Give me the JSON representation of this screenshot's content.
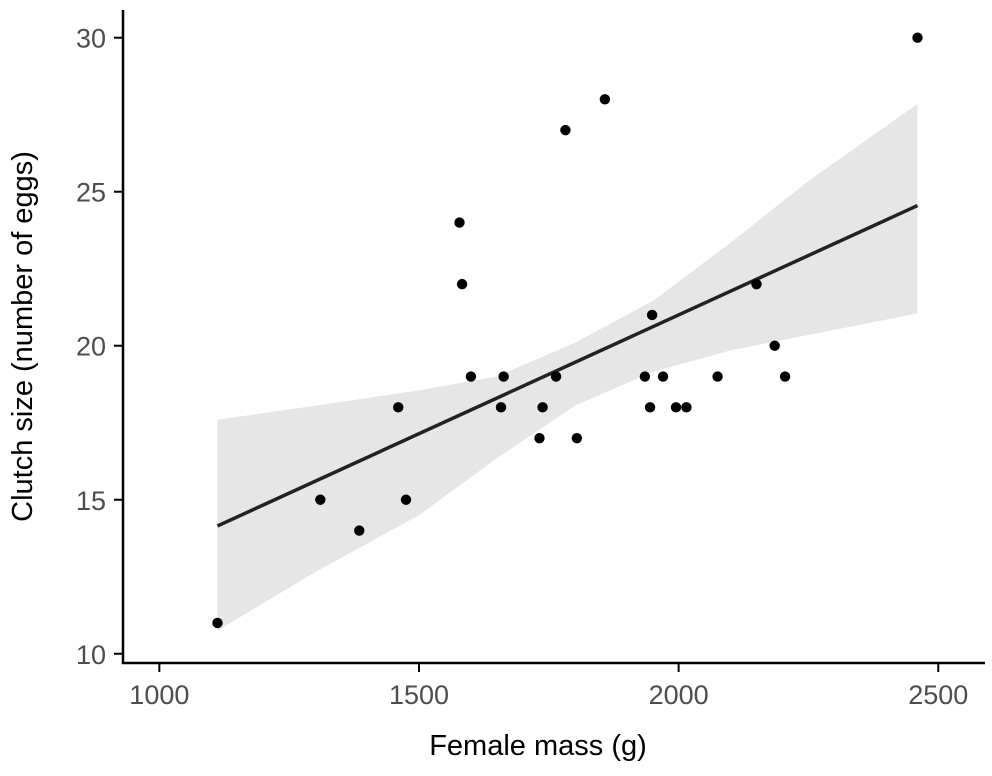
{
  "chart_data": {
    "type": "scatter",
    "xlabel": "Female mass (g)",
    "ylabel": "Clutch size (number of eggs)",
    "xlim": [
      930,
      2590
    ],
    "ylim": [
      9.7,
      30.9
    ],
    "x_ticks": [
      1000,
      1500,
      2000,
      2500
    ],
    "y_ticks": [
      10,
      15,
      20,
      25,
      30
    ],
    "grid": false,
    "legend": "none",
    "points": [
      {
        "x": 1112,
        "y": 11
      },
      {
        "x": 1310,
        "y": 15
      },
      {
        "x": 1385,
        "y": 14
      },
      {
        "x": 1460,
        "y": 18
      },
      {
        "x": 1475,
        "y": 15
      },
      {
        "x": 1578,
        "y": 24
      },
      {
        "x": 1583,
        "y": 22
      },
      {
        "x": 1600,
        "y": 19
      },
      {
        "x": 1658,
        "y": 18
      },
      {
        "x": 1663,
        "y": 19
      },
      {
        "x": 1732,
        "y": 17
      },
      {
        "x": 1738,
        "y": 18
      },
      {
        "x": 1764,
        "y": 19
      },
      {
        "x": 1782,
        "y": 27
      },
      {
        "x": 1804,
        "y": 17
      },
      {
        "x": 1858,
        "y": 28
      },
      {
        "x": 1935,
        "y": 19
      },
      {
        "x": 1945,
        "y": 18
      },
      {
        "x": 1949,
        "y": 21
      },
      {
        "x": 1970,
        "y": 19
      },
      {
        "x": 1995,
        "y": 18
      },
      {
        "x": 2015,
        "y": 18
      },
      {
        "x": 2075,
        "y": 19
      },
      {
        "x": 2150,
        "y": 22
      },
      {
        "x": 2185,
        "y": 20
      },
      {
        "x": 2205,
        "y": 19
      },
      {
        "x": 2460,
        "y": 30
      }
    ],
    "fit_line": {
      "x": [
        1112,
        2460
      ],
      "y": [
        14.15,
        24.55
      ]
    },
    "confidence_band": [
      {
        "x": 1112,
        "lower": 10.75,
        "upper": 17.6
      },
      {
        "x": 1300,
        "lower": 12.65,
        "upper": 18.05
      },
      {
        "x": 1500,
        "lower": 14.5,
        "upper": 18.55
      },
      {
        "x": 1650,
        "lower": 16.35,
        "upper": 19.0
      },
      {
        "x": 1800,
        "lower": 18.05,
        "upper": 20.1
      },
      {
        "x": 1950,
        "lower": 19.15,
        "upper": 21.45
      },
      {
        "x": 2100,
        "lower": 19.85,
        "upper": 23.35
      },
      {
        "x": 2250,
        "lower": 20.35,
        "upper": 25.35
      },
      {
        "x": 2460,
        "lower": 21.05,
        "upper": 27.85
      }
    ],
    "colors": {
      "points": "#000000",
      "line": "#222222",
      "band": "#e6e6e6",
      "axis": "#000000",
      "tick_label": "#4d4d4d"
    }
  }
}
